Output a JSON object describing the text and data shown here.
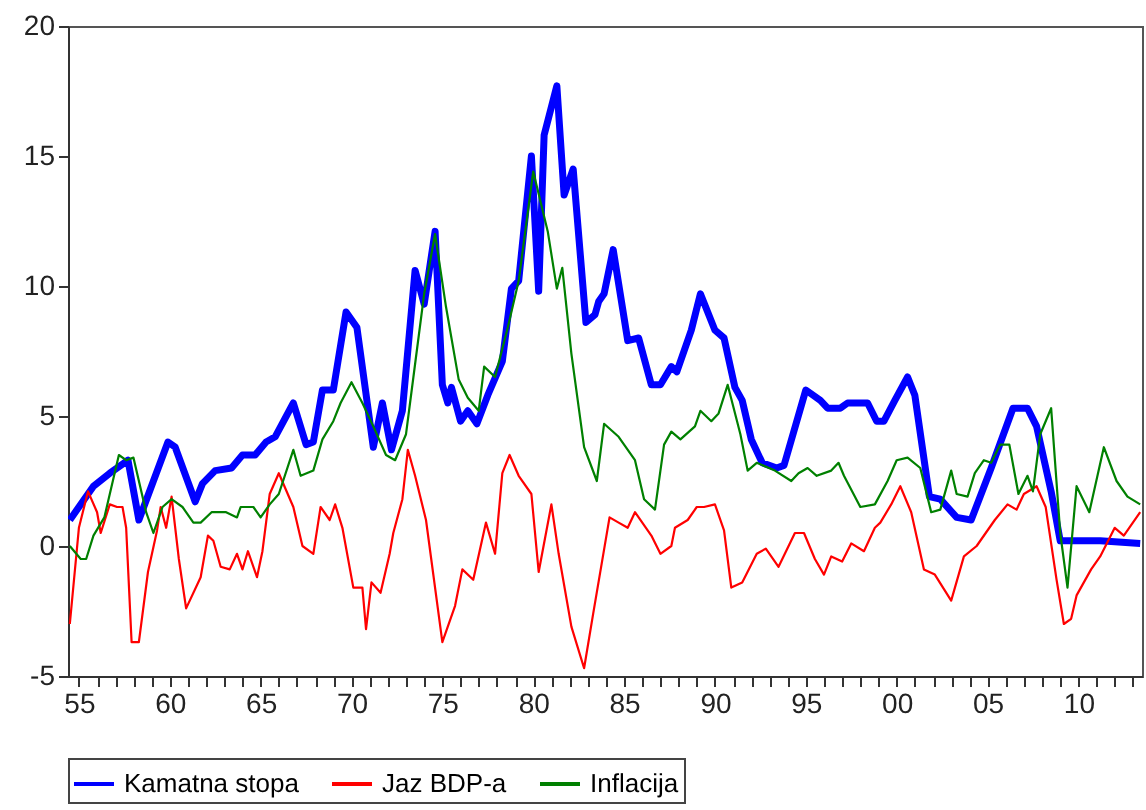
{
  "chart_data": {
    "type": "line",
    "legend": "bottom",
    "grid": false,
    "marker": "none",
    "line_style": "solid",
    "xlim": [
      1954.4,
      2013.5
    ],
    "ylim": [
      -5,
      20
    ],
    "yticks": [
      -5,
      0,
      5,
      10,
      15,
      20
    ],
    "xticks": [
      {
        "value": 1955,
        "label": "55"
      },
      {
        "value": 1956,
        "label": null
      },
      {
        "value": 1957,
        "label": null
      },
      {
        "value": 1958,
        "label": null
      },
      {
        "value": 1959,
        "label": null
      },
      {
        "value": 1960,
        "label": "60"
      },
      {
        "value": 1961,
        "label": null
      },
      {
        "value": 1962,
        "label": null
      },
      {
        "value": 1963,
        "label": null
      },
      {
        "value": 1964,
        "label": null
      },
      {
        "value": 1965,
        "label": "65"
      },
      {
        "value": 1966,
        "label": null
      },
      {
        "value": 1967,
        "label": null
      },
      {
        "value": 1968,
        "label": null
      },
      {
        "value": 1969,
        "label": null
      },
      {
        "value": 1970,
        "label": "70"
      },
      {
        "value": 1971,
        "label": null
      },
      {
        "value": 1972,
        "label": null
      },
      {
        "value": 1973,
        "label": null
      },
      {
        "value": 1974,
        "label": null
      },
      {
        "value": 1975,
        "label": "75"
      },
      {
        "value": 1976,
        "label": null
      },
      {
        "value": 1977,
        "label": null
      },
      {
        "value": 1978,
        "label": null
      },
      {
        "value": 1979,
        "label": null
      },
      {
        "value": 1980,
        "label": "80"
      },
      {
        "value": 1981,
        "label": null
      },
      {
        "value": 1982,
        "label": null
      },
      {
        "value": 1983,
        "label": null
      },
      {
        "value": 1984,
        "label": null
      },
      {
        "value": 1985,
        "label": "85"
      },
      {
        "value": 1986,
        "label": null
      },
      {
        "value": 1987,
        "label": null
      },
      {
        "value": 1988,
        "label": null
      },
      {
        "value": 1989,
        "label": null
      },
      {
        "value": 1990,
        "label": "90"
      },
      {
        "value": 1991,
        "label": null
      },
      {
        "value": 1992,
        "label": null
      },
      {
        "value": 1993,
        "label": null
      },
      {
        "value": 1994,
        "label": null
      },
      {
        "value": 1995,
        "label": "95"
      },
      {
        "value": 1996,
        "label": null
      },
      {
        "value": 1997,
        "label": null
      },
      {
        "value": 1998,
        "label": null
      },
      {
        "value": 1999,
        "label": null
      },
      {
        "value": 2000,
        "label": "00"
      },
      {
        "value": 2001,
        "label": null
      },
      {
        "value": 2002,
        "label": null
      },
      {
        "value": 2003,
        "label": null
      },
      {
        "value": 2004,
        "label": null
      },
      {
        "value": 2005,
        "label": "05"
      },
      {
        "value": 2006,
        "label": null
      },
      {
        "value": 2007,
        "label": null
      },
      {
        "value": 2008,
        "label": null
      },
      {
        "value": 2009,
        "label": null
      },
      {
        "value": 2010,
        "label": "10"
      },
      {
        "value": 2011,
        "label": null
      },
      {
        "value": 2012,
        "label": null
      },
      {
        "value": 2013,
        "label": null
      }
    ],
    "series": [
      {
        "name": "Kamatna stopa",
        "color": "#0000ff",
        "x": [
          1954.5,
          1955.8,
          1956.7,
          1957.5,
          1957.7,
          1958.3,
          1959.9,
          1960.3,
          1961.4,
          1961.8,
          1962.5,
          1963.4,
          1964,
          1964.7,
          1965.3,
          1965.8,
          1966.8,
          1967.5,
          1967.9,
          1968.4,
          1969,
          1969.7,
          1970.3,
          1971.2,
          1971.7,
          1972.2,
          1972.8,
          1973.5,
          1974,
          1974.6,
          1975,
          1975.3,
          1975.5,
          1976,
          1976.4,
          1976.9,
          1977.5,
          1978.3,
          1978.8,
          1979.2,
          1979.9,
          1980.3,
          1980.6,
          1981.3,
          1981.7,
          1982.2,
          1982.9,
          1983.4,
          1983.6,
          1983.9,
          1984.4,
          1985.2,
          1985.8,
          1986.5,
          1987,
          1987.6,
          1987.9,
          1988.7,
          1989.2,
          1990,
          1990.5,
          1991.1,
          1991.5,
          1992,
          1992.6,
          1993.4,
          1993.8,
          1995,
          1995.8,
          1996.2,
          1996.9,
          1997.3,
          1998.4,
          1998.9,
          1999.3,
          1999.9,
          2000.6,
          2001,
          2001.8,
          2002.4,
          2003.3,
          2004.1,
          2005.2,
          2006.4,
          2007.2,
          2007.7,
          2008.5,
          2009,
          2011.2,
          2013.4
        ],
        "values": [
          1.0,
          2.3,
          2.8,
          3.2,
          3.3,
          1.0,
          4.0,
          3.8,
          1.7,
          2.4,
          2.9,
          3.0,
          3.5,
          3.5,
          4.0,
          4.2,
          5.5,
          3.9,
          4.0,
          6.0,
          6.0,
          9.0,
          8.4,
          3.8,
          5.5,
          3.7,
          5.2,
          10.6,
          9.3,
          12.1,
          6.2,
          5.5,
          6.1,
          4.8,
          5.2,
          4.7,
          5.8,
          7.1,
          9.9,
          10.2,
          15.0,
          9.8,
          15.8,
          17.7,
          13.5,
          14.5,
          8.6,
          8.9,
          9.4,
          9.7,
          11.4,
          7.9,
          8.0,
          6.2,
          6.2,
          6.9,
          6.7,
          8.3,
          9.7,
          8.3,
          8.0,
          6.1,
          5.6,
          4.1,
          3.2,
          3.0,
          3.1,
          6.0,
          5.6,
          5.3,
          5.3,
          5.5,
          5.5,
          4.8,
          4.8,
          5.6,
          6.5,
          5.8,
          1.9,
          1.8,
          1.1,
          1.0,
          3.0,
          5.3,
          5.3,
          4.6,
          2.1,
          0.2,
          0.2,
          0.1
        ]
      },
      {
        "name": "Jaz BDP-a",
        "color": "#ff0000",
        "x": [
          1954.5,
          1955,
          1955.5,
          1956,
          1956.2,
          1956.7,
          1957.1,
          1957.4,
          1957.6,
          1957.9,
          1958.3,
          1958.8,
          1959.3,
          1959.5,
          1959.8,
          1960.1,
          1960.5,
          1960.9,
          1961.7,
          1962.1,
          1962.4,
          1962.8,
          1963.3,
          1963.7,
          1964,
          1964.3,
          1964.8,
          1965.1,
          1965.5,
          1966,
          1966.8,
          1967.3,
          1967.9,
          1968.3,
          1968.8,
          1969.1,
          1969.5,
          1970.1,
          1970.6,
          1970.8,
          1971.1,
          1971.6,
          1972.1,
          1972.3,
          1972.8,
          1973.1,
          1973.5,
          1974.1,
          1975,
          1975.7,
          1976.1,
          1976.7,
          1977.4,
          1977.9,
          1978.3,
          1978.7,
          1979.2,
          1979.9,
          1980.3,
          1981,
          1981.4,
          1982.1,
          1982.8,
          1983.3,
          1984.2,
          1984.7,
          1985.2,
          1985.6,
          1986.5,
          1987,
          1987.6,
          1987.8,
          1988.5,
          1989,
          1989.4,
          1990,
          1990.5,
          1990.9,
          1991.5,
          1992.3,
          1992.8,
          1993.5,
          1994.4,
          1994.9,
          1995.5,
          1996,
          1996.4,
          1997,
          1997.5,
          1998.2,
          1998.8,
          1999.1,
          1999.7,
          2000.2,
          2000.8,
          2001.5,
          2002.1,
          2003,
          2003.7,
          2004.4,
          2005.4,
          2006.1,
          2006.6,
          2007,
          2007.7,
          2008.2,
          2008.8,
          2009.2,
          2009.6,
          2009.9,
          2010.7,
          2011.2,
          2012,
          2012.5,
          2013.4
        ],
        "values": [
          -3.0,
          0.7,
          2.1,
          1.3,
          0.5,
          1.6,
          1.5,
          1.5,
          0.7,
          -3.7,
          -3.7,
          -1.0,
          0.6,
          1.5,
          0.7,
          1.9,
          -0.5,
          -2.4,
          -1.2,
          0.4,
          0.2,
          -0.8,
          -0.9,
          -0.3,
          -0.9,
          -0.2,
          -1.2,
          -0.2,
          2.0,
          2.8,
          1.5,
          0.0,
          -0.3,
          1.5,
          1.0,
          1.6,
          0.7,
          -1.6,
          -1.6,
          -3.2,
          -1.4,
          -1.8,
          -0.3,
          0.5,
          1.8,
          3.7,
          2.7,
          1.0,
          -3.7,
          -2.3,
          -0.9,
          -1.3,
          0.9,
          -0.3,
          2.8,
          3.5,
          2.7,
          2.0,
          -1.0,
          1.6,
          -0.3,
          -3.1,
          -4.7,
          -2.6,
          1.1,
          0.9,
          0.7,
          1.3,
          0.4,
          -0.3,
          0.0,
          0.7,
          1.0,
          1.5,
          1.5,
          1.6,
          0.6,
          -1.6,
          -1.4,
          -0.3,
          -0.1,
          -0.8,
          0.5,
          0.5,
          -0.5,
          -1.1,
          -0.4,
          -0.6,
          0.1,
          -0.2,
          0.7,
          0.9,
          1.6,
          2.3,
          1.3,
          -0.9,
          -1.1,
          -2.1,
          -0.4,
          0.0,
          1.0,
          1.6,
          1.4,
          2.0,
          2.3,
          1.5,
          -1.3,
          -3.0,
          -2.8,
          -1.9,
          -0.9,
          -0.4,
          0.7,
          0.4,
          1.3
        ]
      },
      {
        "name": "Inflacija",
        "color": "#008000",
        "x": [
          1954.5,
          1955.1,
          1955.4,
          1955.8,
          1956.4,
          1957.2,
          1957.6,
          1958,
          1958.7,
          1959.1,
          1959.6,
          1960.1,
          1960.7,
          1961.3,
          1961.7,
          1962.3,
          1963.1,
          1963.7,
          1963.9,
          1964.6,
          1965,
          1965.5,
          1966,
          1966.8,
          1967.2,
          1967.9,
          1968.4,
          1969,
          1969.4,
          1970,
          1970.6,
          1971.2,
          1971.9,
          1972.4,
          1973,
          1973.5,
          1974,
          1974.6,
          1975.2,
          1975.9,
          1976.4,
          1977,
          1977.3,
          1977.9,
          1978.6,
          1979.2,
          1980,
          1980.8,
          1981.3,
          1981.6,
          1982.1,
          1982.8,
          1983.5,
          1983.9,
          1984.7,
          1985.6,
          1986.1,
          1986.7,
          1987.2,
          1987.6,
          1988.1,
          1988.9,
          1989.2,
          1989.8,
          1990.2,
          1990.7,
          1991.4,
          1991.8,
          1992.3,
          1993.3,
          1994.2,
          1994.6,
          1995.1,
          1995.6,
          1996.4,
          1996.8,
          1997.1,
          1998,
          1998.8,
          1999.5,
          2000,
          2000.6,
          2001.3,
          2001.9,
          2002.4,
          2003,
          2003.3,
          2003.9,
          2004.3,
          2004.8,
          2005.2,
          2005.7,
          2006.2,
          2006.7,
          2007.2,
          2007.5,
          2007.9,
          2008.5,
          2009,
          2009.4,
          2009.9,
          2010.6,
          2011.4,
          2012.1,
          2012.7,
          2013.4
        ],
        "values": [
          0.0,
          -0.5,
          -0.5,
          0.4,
          1.1,
          3.5,
          3.3,
          3.4,
          1.3,
          0.5,
          1.5,
          1.8,
          1.5,
          0.9,
          0.9,
          1.3,
          1.3,
          1.1,
          1.5,
          1.5,
          1.1,
          1.6,
          2.0,
          3.7,
          2.7,
          2.9,
          4.1,
          4.8,
          5.5,
          6.3,
          5.5,
          4.6,
          3.5,
          3.3,
          4.3,
          7.0,
          9.7,
          12.0,
          9.2,
          6.4,
          5.7,
          5.2,
          6.9,
          6.5,
          8.4,
          10.2,
          14.4,
          12.1,
          9.9,
          10.7,
          7.4,
          3.8,
          2.5,
          4.7,
          4.2,
          3.3,
          1.8,
          1.4,
          3.9,
          4.4,
          4.1,
          4.6,
          5.2,
          4.8,
          5.1,
          6.2,
          4.3,
          2.9,
          3.2,
          2.9,
          2.5,
          2.8,
          3.0,
          2.7,
          2.9,
          3.2,
          2.7,
          1.5,
          1.6,
          2.5,
          3.3,
          3.4,
          3.0,
          1.3,
          1.4,
          2.9,
          2.0,
          1.9,
          2.8,
          3.3,
          3.2,
          3.9,
          3.9,
          2.0,
          2.7,
          2.1,
          4.3,
          5.3,
          0.5,
          -1.6,
          2.3,
          1.3,
          3.8,
          2.5,
          1.9,
          1.6
        ]
      }
    ]
  }
}
